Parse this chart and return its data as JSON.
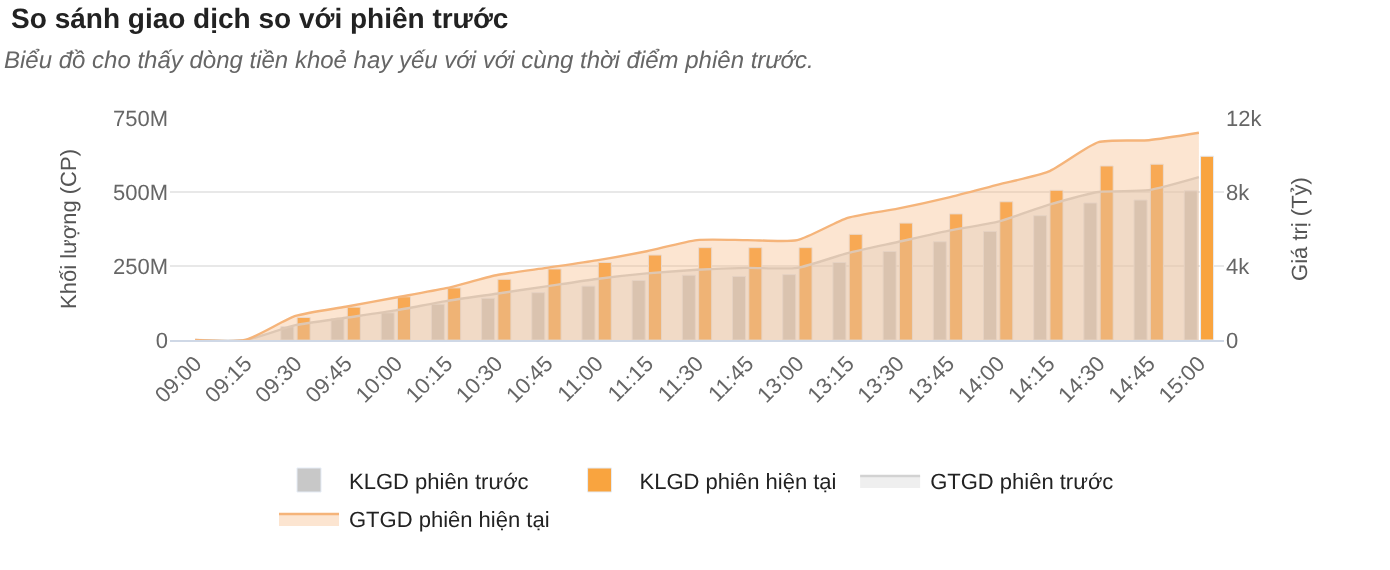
{
  "chart_data": {
    "type": "bar",
    "title": "So sánh giao dịch so với phiên trước",
    "subtitle": "Biểu đồ cho thấy dòng tiền khoẻ hay yếu với với cùng thời điểm phiên trước.",
    "ylabel": "Khối lượng (CP)",
    "y2label": "Giá trị (Tỷ)",
    "categories": [
      "09:00",
      "09:15",
      "09:30",
      "09:45",
      "10:00",
      "10:15",
      "10:30",
      "10:45",
      "11:00",
      "11:15",
      "11:30",
      "11:45",
      "13:00",
      "13:15",
      "13:30",
      "13:45",
      "14:00",
      "14:15",
      "14:30",
      "14:45",
      "15:00"
    ],
    "series": [
      {
        "name": "KLGD phiên trước",
        "color": "#c8c8c8",
        "values": [
          null,
          null,
          45000000,
          72000000,
          92000000,
          121000000,
          141000000,
          160000000,
          182000000,
          201000000,
          219000000,
          215000000,
          221000000,
          262000000,
          299000000,
          332000000,
          367000000,
          420000000,
          463000000,
          473000000,
          504000000
        ]
      },
      {
        "name": "KLGD phiên hiện tại",
        "color": "#f9a43f",
        "values": [
          null,
          null,
          76000000,
          111000000,
          146000000,
          176000000,
          205000000,
          240000000,
          262000000,
          287000000,
          312000000,
          312000000,
          312000000,
          357000000,
          395000000,
          426000000,
          467000000,
          506000000,
          588000000,
          594000000,
          621000000
        ]
      },
      {
        "name": "GTGD phiên trước",
        "type": "area",
        "axis": "y2",
        "color": "#d2d2d2",
        "values": [
          0,
          0,
          800,
          1200,
          1600,
          2100,
          2500,
          2900,
          3300,
          3600,
          3800,
          3900,
          3900,
          4700,
          5300,
          5900,
          6400,
          7300,
          8000,
          8100,
          8800
        ]
      },
      {
        "name": "GTGD phiên hiện tại",
        "type": "area",
        "axis": "y2",
        "color": "#f5b47a",
        "values": [
          0,
          0,
          1300,
          1800,
          2300,
          2800,
          3500,
          3900,
          4300,
          4800,
          5400,
          5400,
          5400,
          6600,
          7100,
          7700,
          8400,
          9100,
          10700,
          10800,
          11200
        ]
      }
    ],
    "ylim": [
      0,
      750000000
    ],
    "yticks": [
      0,
      {
        "value": 250000000,
        "label": "250M"
      },
      {
        "value": 500000000,
        "label": "500M"
      },
      {
        "value": 750000000,
        "label": "750M"
      }
    ],
    "y2lim": [
      0,
      12000
    ],
    "y2ticks": [
      0,
      {
        "value": 4000,
        "label": "4k"
      },
      {
        "value": 8000,
        "label": "8k"
      },
      {
        "value": 12000,
        "label": "12k"
      }
    ],
    "grid": "y",
    "legend": "bottom",
    "marker": "none",
    "line_style": "solid"
  }
}
